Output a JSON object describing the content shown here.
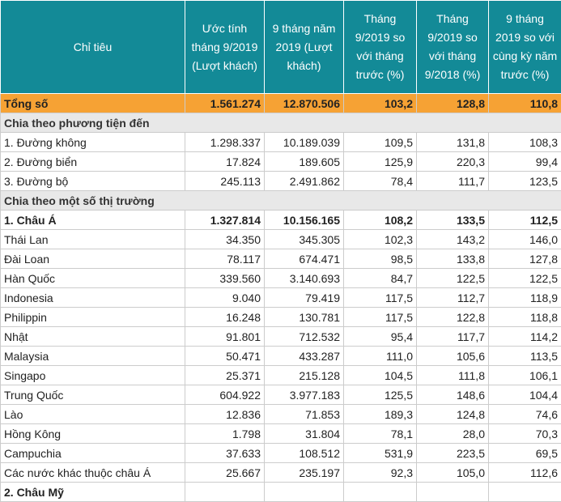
{
  "table": {
    "header": [
      "Chỉ tiêu",
      "Ước tính tháng 9/2019 (Lượt khách)",
      "9 tháng năm 2019 (Lượt khách)",
      "Tháng 9/2019 so với tháng trước (%)",
      "Tháng 9/2019 so với tháng 9/2018 (%)",
      "9 tháng 2019 so với cùng kỳ năm trước (%)"
    ],
    "rows": [
      {
        "style": "total",
        "cells": [
          "Tổng số",
          "1.561.274",
          "12.870.506",
          "103,2",
          "128,8",
          "110,8"
        ]
      },
      {
        "style": "section",
        "cells": [
          "Chia theo phương tiện đến"
        ]
      },
      {
        "style": "normal",
        "cells": [
          "1. Đường không",
          "1.298.337",
          "10.189.039",
          "109,5",
          "131,8",
          "108,3"
        ]
      },
      {
        "style": "normal",
        "cells": [
          "2. Đường biển",
          "17.824",
          "189.605",
          "125,9",
          "220,3",
          "99,4"
        ]
      },
      {
        "style": "normal",
        "cells": [
          "3. Đường bộ",
          "245.113",
          "2.491.862",
          "78,4",
          "111,7",
          "123,5"
        ]
      },
      {
        "style": "section",
        "cells": [
          "Chia theo một số thị trường"
        ]
      },
      {
        "style": "bold",
        "cells": [
          "1. Châu Á",
          "1.327.814",
          "10.156.165",
          "108,2",
          "133,5",
          "112,5"
        ]
      },
      {
        "style": "normal",
        "cells": [
          "Thái Lan",
          "34.350",
          "345.305",
          "102,3",
          "143,2",
          "146,0"
        ]
      },
      {
        "style": "normal",
        "cells": [
          "Đài Loan",
          "78.117",
          "674.471",
          "98,5",
          "133,8",
          "127,8"
        ]
      },
      {
        "style": "normal",
        "cells": [
          "Hàn Quốc",
          "339.560",
          "3.140.693",
          "84,7",
          "122,5",
          "122,5"
        ]
      },
      {
        "style": "normal",
        "cells": [
          "Indonesia",
          "9.040",
          "79.419",
          "117,5",
          "112,7",
          "118,9"
        ]
      },
      {
        "style": "normal",
        "cells": [
          "Philippin",
          "16.248",
          "130.781",
          "117,5",
          "122,8",
          "118,8"
        ]
      },
      {
        "style": "normal",
        "cells": [
          "Nhật",
          "91.801",
          "712.532",
          "95,4",
          "117,7",
          "114,2"
        ]
      },
      {
        "style": "normal",
        "cells": [
          "Malaysia",
          "50.471",
          "433.287",
          "111,0",
          "105,6",
          "113,5"
        ]
      },
      {
        "style": "normal",
        "cells": [
          "Singapo",
          "25.371",
          "215.128",
          "104,5",
          "111,8",
          "106,1"
        ]
      },
      {
        "style": "normal",
        "cells": [
          "Trung Quốc",
          "604.922",
          "3.977.183",
          "125,5",
          "148,6",
          "104,4"
        ]
      },
      {
        "style": "normal",
        "cells": [
          "Lào",
          "12.836",
          "71.853",
          "189,3",
          "124,8",
          "74,6"
        ]
      },
      {
        "style": "normal",
        "cells": [
          "Hồng Kông",
          "1.798",
          "31.804",
          "78,1",
          "28,0",
          "70,3"
        ]
      },
      {
        "style": "normal",
        "cells": [
          "Campuchia",
          "37.633",
          "108.512",
          "531,9",
          "223,5",
          "69,5"
        ]
      },
      {
        "style": "normal",
        "cells": [
          "Các nước khác thuộc châu Á",
          "25.667",
          "235.197",
          "92,3",
          "105,0",
          "112,6"
        ]
      },
      {
        "style": "bold",
        "cells": [
          "2. Châu Mỹ"
        ]
      }
    ]
  }
}
